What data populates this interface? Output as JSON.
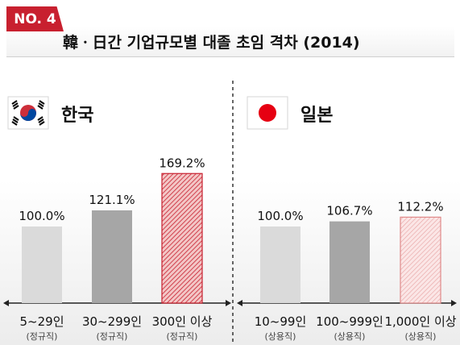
{
  "badge": "NO. 4",
  "title": "韓ㆍ日간 기업규모별 대졸 초임 격차 (2014)",
  "colors": {
    "accent": "#c8202f",
    "bar_light": "#dadada",
    "bar_dark": "#a6a6a6",
    "bar_highlight": "#c8202f"
  },
  "chart_data": [
    {
      "type": "bar",
      "country": "한국",
      "flag": "korea-flag",
      "categories": [
        "5~29인",
        "30~299인",
        "300인 이상"
      ],
      "sub_labels": [
        "(정규직)",
        "(정규직)",
        "(정규직)"
      ],
      "values": [
        100.0,
        121.1,
        169.2
      ],
      "value_labels": [
        "100.0%",
        "121.1%",
        "169.2%"
      ],
      "styles": [
        "light",
        "dark",
        "highlight"
      ],
      "ylim": [
        0,
        180
      ]
    },
    {
      "type": "bar",
      "country": "일본",
      "flag": "japan-flag",
      "categories": [
        "10~99인",
        "100~999인",
        "1,000인 이상"
      ],
      "sub_labels": [
        "(상용직)",
        "(상용직)",
        "(상용직)"
      ],
      "values": [
        100.0,
        106.7,
        112.2
      ],
      "value_labels": [
        "100.0%",
        "106.7%",
        "112.2%"
      ],
      "styles": [
        "light",
        "dark",
        "highlight-light"
      ],
      "ylim": [
        0,
        180
      ]
    }
  ]
}
